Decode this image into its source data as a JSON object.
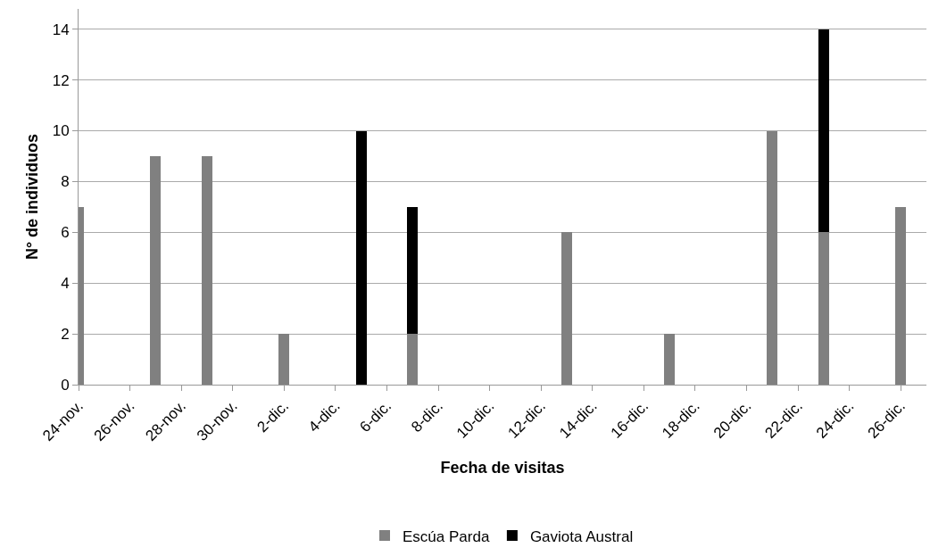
{
  "chart_data": {
    "type": "bar",
    "stacked": true,
    "xlabel": "Fecha de visitas",
    "ylabel": "N° de individuos",
    "x": [
      "--11-24",
      "--11-27",
      "--11-29",
      "--12-02",
      "--12-05",
      "--12-07",
      "--12-13",
      "--12-17",
      "--12-21",
      "--12-23",
      "--12-26"
    ],
    "series": [
      {
        "name": "Escúa Parda",
        "color": "#808080",
        "values": [
          7,
          9,
          9,
          2,
          null,
          2,
          6,
          2,
          10,
          6,
          7
        ]
      },
      {
        "name": "Gaviota Austral",
        "color": "#000000",
        "values": [
          null,
          null,
          null,
          null,
          10,
          5,
          null,
          null,
          null,
          8,
          null
        ]
      }
    ],
    "xlim": [
      "--11-24",
      "--12-27"
    ],
    "xticks": [
      {
        "value": "--11-24",
        "label": "24-nov."
      },
      {
        "value": "--11-26",
        "label": "26-nov."
      },
      {
        "value": "--11-28",
        "label": "28-nov."
      },
      {
        "value": "--11-30",
        "label": "30-nov."
      },
      {
        "value": "--12-02",
        "label": "2-dic."
      },
      {
        "value": "--12-04",
        "label": "4-dic."
      },
      {
        "value": "--12-06",
        "label": "6-dic."
      },
      {
        "value": "--12-08",
        "label": "8-dic."
      },
      {
        "value": "--12-10",
        "label": "10-dic."
      },
      {
        "value": "--12-12",
        "label": "12-dic."
      },
      {
        "value": "--12-14",
        "label": "14-dic."
      },
      {
        "value": "--12-16",
        "label": "16-dic."
      },
      {
        "value": "--12-18",
        "label": "18-dic."
      },
      {
        "value": "--12-20",
        "label": "20-dic."
      },
      {
        "value": "--12-22",
        "label": "22-dic."
      },
      {
        "value": "--12-24",
        "label": "24-dic."
      },
      {
        "value": "--12-26",
        "label": "26-dic."
      }
    ],
    "ylim": [
      0,
      14.8
    ],
    "yticks": [
      0,
      2,
      4,
      6,
      8,
      10,
      12,
      14
    ],
    "grid": "y",
    "legend": "bottom"
  }
}
